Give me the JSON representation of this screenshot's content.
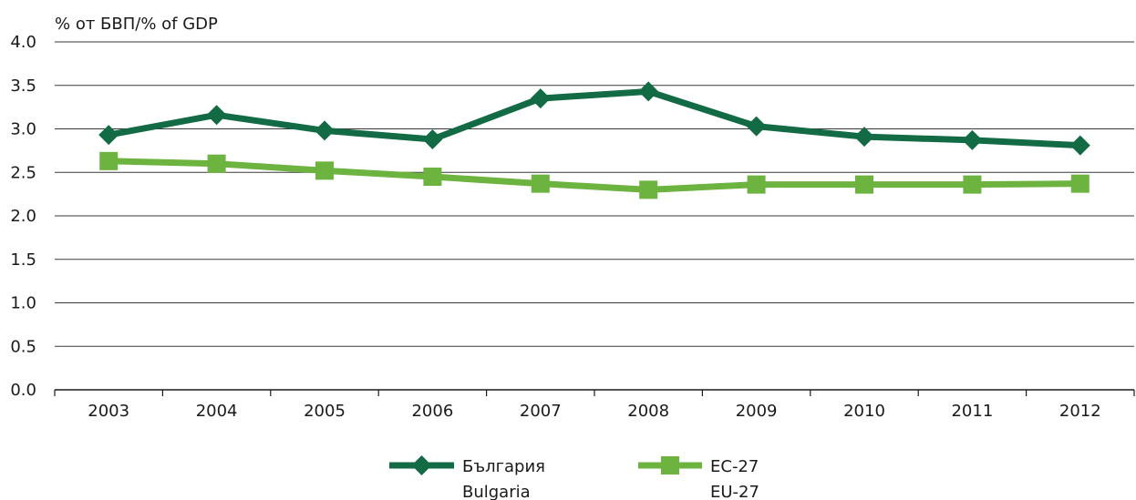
{
  "chart_data": {
    "type": "line",
    "ylabel": "% от БВП/% of GDP",
    "categories": [
      "2003",
      "2004",
      "2005",
      "2006",
      "2007",
      "2008",
      "2009",
      "2010",
      "2011",
      "2012"
    ],
    "ylim": [
      0,
      4
    ],
    "yticks": [
      "0.0",
      "0.5",
      "1.0",
      "1.5",
      "2.0",
      "2.5",
      "3.0",
      "3.5",
      "4.0"
    ],
    "grid": true,
    "legend_position": "bottom",
    "series": [
      {
        "name": "България",
        "name_en": "Bulgaria",
        "color": "#136b45",
        "marker": "diamond",
        "values": [
          2.93,
          3.16,
          2.98,
          2.88,
          3.35,
          3.43,
          3.03,
          2.91,
          2.87,
          2.81
        ]
      },
      {
        "name": "ЕС-27",
        "name_en": "EU-27",
        "color": "#6db33f",
        "marker": "square",
        "values": [
          2.63,
          2.6,
          2.52,
          2.45,
          2.37,
          2.3,
          2.36,
          2.36,
          2.36,
          2.37
        ]
      }
    ]
  }
}
